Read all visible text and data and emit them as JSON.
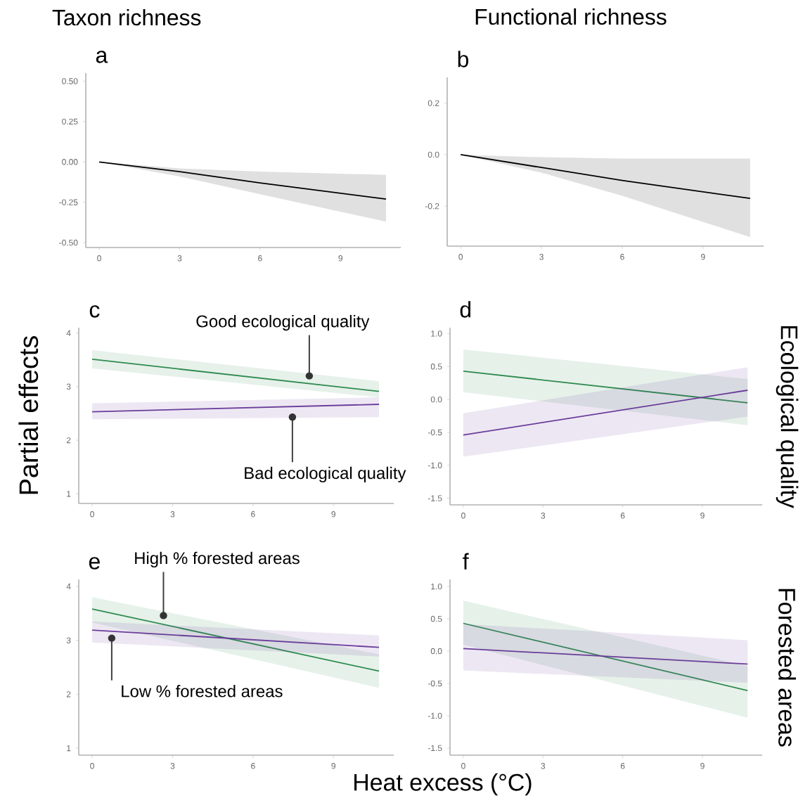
{
  "chart_data": [
    {
      "type": "line",
      "title": "a",
      "annotations": [
        "Taxon richness"
      ],
      "xlim": [
        -0.5,
        11.25
      ],
      "ylim": [
        -0.53,
        0.55
      ],
      "xticks": [
        0,
        3,
        6,
        9
      ],
      "yticks": [
        {
          "value": -0.5,
          "label": "-0.50"
        },
        -0.25,
        {
          "value": 0,
          "label": "0.00"
        },
        0.25,
        {
          "value": 0.5,
          "label": "0.50"
        }
      ],
      "series": [
        {
          "color": "#000000",
          "x": [
            0,
            3,
            6,
            10.7
          ],
          "values": [
            0,
            -0.06,
            -0.13,
            -0.23
          ],
          "lower": [
            0,
            -0.09,
            -0.2,
            -0.37
          ],
          "upper": [
            0,
            -0.04,
            -0.06,
            -0.08
          ]
        }
      ]
    },
    {
      "type": "line",
      "title": "b",
      "annotations": [
        "Functional richness"
      ],
      "xlim": [
        -0.5,
        11.25
      ],
      "ylim": [
        -0.355,
        0.3
      ],
      "xticks": [
        0,
        3,
        6,
        9
      ],
      "yticks": [
        -0.2,
        {
          "value": 0,
          "label": "0.0"
        },
        0.2
      ],
      "series": [
        {
          "color": "#000000",
          "x": [
            0,
            3,
            6,
            10.75
          ],
          "values": [
            0,
            -0.05,
            -0.1,
            -0.17
          ],
          "lower": [
            0,
            -0.07,
            -0.16,
            -0.32
          ],
          "upper": [
            0,
            -0.01,
            -0.015,
            -0.015
          ]
        }
      ]
    },
    {
      "type": "line",
      "title": "c",
      "ylabel": "Partial effects",
      "xlim": [
        -0.5,
        11.25
      ],
      "ylim": [
        0.82,
        4.1
      ],
      "xticks": [
        0,
        3,
        6,
        9
      ],
      "yticks": [
        1,
        2,
        3,
        4
      ],
      "annotations": [
        {
          "text": "Good ecological quality",
          "x": 8.1,
          "y": 3.2
        },
        {
          "text": "Bad ecological quality",
          "x": 7.47,
          "y": 2.43
        }
      ],
      "series": [
        {
          "color": "#2e8b4f",
          "x": [
            0,
            10.7
          ],
          "values": [
            3.51,
            2.91
          ],
          "lower": [
            3.34,
            2.8
          ],
          "upper": [
            3.68,
            3.1
          ]
        },
        {
          "color": "#6a3d9a",
          "x": [
            0,
            10.7
          ],
          "values": [
            2.53,
            2.67
          ],
          "lower": [
            2.39,
            2.43
          ],
          "upper": [
            2.69,
            2.8
          ]
        }
      ]
    },
    {
      "type": "line",
      "title": "d",
      "y2label": "Ecological quality",
      "xlim": [
        -0.5,
        11.25
      ],
      "ylim": [
        -1.6,
        1.09
      ],
      "xticks": [
        0,
        3,
        6,
        9
      ],
      "yticks": [
        -1.5,
        {
          "value": -1,
          "label": "-1.0"
        },
        -0.5,
        {
          "value": 0,
          "label": "0.0"
        },
        0.5,
        {
          "value": 1,
          "label": "1.0"
        }
      ],
      "series": [
        {
          "color": "#2e8b4f",
          "x": [
            0,
            10.7
          ],
          "values": [
            0.43,
            -0.05
          ],
          "lower": [
            0.11,
            -0.39
          ],
          "upper": [
            0.76,
            0.31
          ]
        },
        {
          "color": "#6a3d9a",
          "x": [
            0,
            10.7
          ],
          "values": [
            -0.54,
            0.14
          ],
          "lower": [
            -0.87,
            -0.26
          ],
          "upper": [
            -0.21,
            0.49
          ]
        }
      ]
    },
    {
      "type": "line",
      "title": "e",
      "xlabel": "Heat excess (°C)",
      "xlim": [
        -0.5,
        11.25
      ],
      "ylim": [
        0.87,
        4.13
      ],
      "xticks": [
        0,
        3,
        6,
        9
      ],
      "yticks": [
        1,
        2,
        3,
        4
      ],
      "annotations": [
        {
          "text": "High % forested areas",
          "x": 2.66,
          "y": 3.46
        },
        {
          "text": "Low % forested areas",
          "x": 0.73,
          "y": 3.04
        }
      ],
      "series": [
        {
          "color": "#2e8b4f",
          "x": [
            0,
            10.7
          ],
          "values": [
            3.58,
            2.43
          ],
          "lower": [
            3.33,
            2.12
          ],
          "upper": [
            3.8,
            2.74
          ]
        },
        {
          "color": "#6a3d9a",
          "x": [
            0,
            10.7
          ],
          "values": [
            3.19,
            2.87
          ],
          "lower": [
            2.96,
            2.7
          ],
          "upper": [
            3.35,
            3.09
          ]
        }
      ]
    },
    {
      "type": "line",
      "title": "f",
      "y2label": "Forested areas",
      "xlim": [
        -0.5,
        11.25
      ],
      "ylim": [
        -1.61,
        1.11
      ],
      "xticks": [
        0,
        3,
        6,
        9
      ],
      "yticks": [
        -1.5,
        {
          "value": -1,
          "label": "-1.0"
        },
        -0.5,
        {
          "value": 0,
          "label": "0.0"
        },
        0.5,
        {
          "value": 1,
          "label": "1.0"
        }
      ],
      "series": [
        {
          "color": "#2e8b4f",
          "x": [
            0,
            10.7
          ],
          "values": [
            0.43,
            -0.61
          ],
          "lower": [
            0.1,
            -1.03
          ],
          "upper": [
            0.78,
            -0.23
          ]
        },
        {
          "color": "#6a3d9a",
          "x": [
            0,
            10.7
          ],
          "values": [
            0.04,
            -0.2
          ],
          "lower": [
            -0.3,
            -0.49
          ],
          "upper": [
            0.42,
            0.17
          ]
        }
      ]
    }
  ]
}
